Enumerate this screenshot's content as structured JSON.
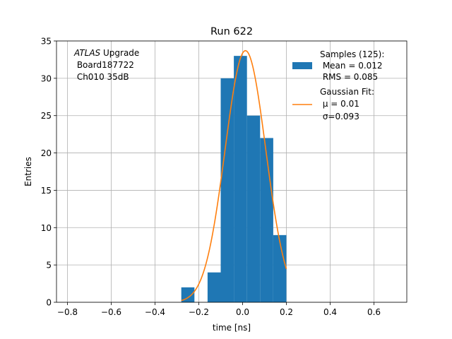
{
  "chart_data": {
    "type": "bar",
    "title": "Run 622",
    "xlabel": "time [ns]",
    "ylabel": "Entries",
    "xlim": [
      -0.85,
      0.75
    ],
    "ylim": [
      0,
      35
    ],
    "xticks": [
      -0.8,
      -0.6,
      -0.4,
      -0.2,
      0.0,
      0.2,
      0.4,
      0.6
    ],
    "xtick_labels": [
      "−0.8",
      "−0.6",
      "−0.4",
      "−0.2",
      "0.0",
      "0.2",
      "0.4",
      "0.6"
    ],
    "yticks": [
      0,
      5,
      10,
      15,
      20,
      25,
      30,
      35
    ],
    "ytick_labels": [
      "0",
      "5",
      "10",
      "15",
      "20",
      "25",
      "30",
      "35"
    ],
    "grid": true,
    "colors": {
      "histogram": "#1f77b4",
      "fit": "#ff7f0e"
    },
    "histogram": {
      "bin_edges": [
        -0.28,
        -0.22,
        -0.16,
        -0.1,
        -0.04,
        0.02,
        0.08,
        0.14,
        0.2
      ],
      "counts": [
        2,
        0,
        4,
        30,
        33,
        25,
        22,
        9
      ]
    },
    "gaussian_fit": {
      "amplitude": 33.7,
      "mu": 0.013,
      "sigma": 0.093,
      "x_range": [
        -0.28,
        0.2
      ]
    },
    "annotation": {
      "italic": "ATLAS",
      "line1_rest": " Upgrade",
      "line2": " Board187722",
      "line3": " Ch010 35dB"
    },
    "legend": {
      "placement": "top-right",
      "histogram_entry": [
        "Samples (125):",
        " Mean = 0.012",
        " RMS = 0.085"
      ],
      "fit_entry": [
        "Gaussian Fit:",
        " μ = 0.01",
        " σ=0.093"
      ]
    }
  }
}
